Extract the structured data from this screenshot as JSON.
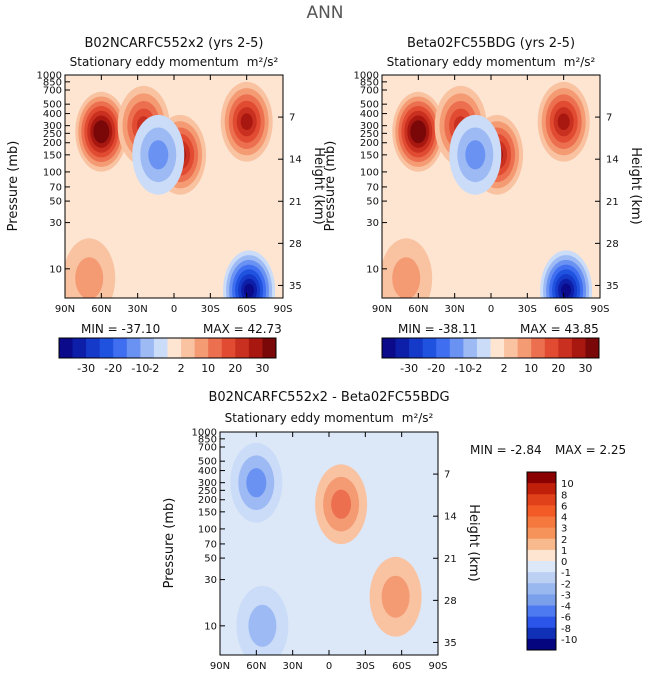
{
  "figure_title": "ANN",
  "chart_data": [
    {
      "type": "heatmap",
      "title": "B02NCARFC552x2 (yrs 2-5)",
      "subtitle": "Stationary eddy momentum",
      "units": "m²/s²",
      "xlabel": "",
      "ylabel": "Pressure (mb)",
      "ylabel_right": "Height (km)",
      "x_tick_labels": [
        "90N",
        "60N",
        "30N",
        "0",
        "30S",
        "60S",
        "90S"
      ],
      "y_tick_labels": [
        "10",
        "30",
        "50",
        "70",
        "100",
        "150",
        "200",
        "250",
        "300",
        "400",
        "500",
        "700",
        "850",
        "1000"
      ],
      "y_right_tick_labels": [
        "35",
        "28",
        "21",
        "14",
        "7"
      ],
      "xlim": [
        90,
        -90
      ],
      "ylim_pressure": [
        1000,
        5
      ],
      "contour_levels": [
        -30,
        -25,
        -20,
        -15,
        -10,
        -5,
        -2,
        0,
        2,
        5,
        10,
        15,
        20,
        25,
        30
      ],
      "min_label": "MIN = -37.10",
      "max_label": "MAX = 42.73",
      "features": [
        {
          "lat": 60,
          "p": 260,
          "value": 42.7
        },
        {
          "lat": -60,
          "p": 330,
          "value": 24
        },
        {
          "lat": 25,
          "p": 300,
          "value": 16
        },
        {
          "lat": -5,
          "p": 150,
          "value": 22
        },
        {
          "lat": -62,
          "p": 6,
          "value": -37.1
        },
        {
          "lat": 13,
          "p": 150,
          "value": -8
        },
        {
          "lat": 70,
          "p": 8,
          "value": 3
        }
      ]
    },
    {
      "type": "heatmap",
      "title": "Beta02FC55BDG (yrs 2-5)",
      "subtitle": "Stationary eddy momentum",
      "units": "m²/s²",
      "xlabel": "",
      "ylabel": "Pressure (mb)",
      "ylabel_right": "Height (km)",
      "x_tick_labels": [
        "90N",
        "60N",
        "30N",
        "0",
        "30S",
        "60S",
        "90S"
      ],
      "y_tick_labels": [
        "10",
        "30",
        "50",
        "70",
        "100",
        "150",
        "200",
        "250",
        "300",
        "400",
        "500",
        "700",
        "850",
        "1000"
      ],
      "y_right_tick_labels": [
        "35",
        "28",
        "21",
        "14",
        "7"
      ],
      "xlim": [
        90,
        -90
      ],
      "ylim_pressure": [
        1000,
        5
      ],
      "contour_levels": [
        -30,
        -25,
        -20,
        -15,
        -10,
        -5,
        -2,
        0,
        2,
        5,
        10,
        15,
        20,
        25,
        30
      ],
      "min_label": "MIN = -38.11",
      "max_label": "MAX = 43.85",
      "features": [
        {
          "lat": 60,
          "p": 260,
          "value": 43.85
        },
        {
          "lat": -60,
          "p": 330,
          "value": 24
        },
        {
          "lat": 25,
          "p": 300,
          "value": 16
        },
        {
          "lat": -5,
          "p": 150,
          "value": 22
        },
        {
          "lat": -62,
          "p": 6,
          "value": -38.11
        },
        {
          "lat": 13,
          "p": 150,
          "value": -8
        },
        {
          "lat": 70,
          "p": 8,
          "value": 4
        }
      ]
    },
    {
      "type": "heatmap",
      "title": "B02NCARFC552x2 - Beta02FC55BDG",
      "subtitle": "Stationary eddy momentum",
      "units": "m²/s²",
      "xlabel": "",
      "ylabel": "Pressure (mb)",
      "ylabel_right": "Height (km)",
      "x_tick_labels": [
        "90N",
        "60N",
        "30N",
        "0",
        "30S",
        "60S",
        "90S"
      ],
      "y_tick_labels": [
        "10",
        "30",
        "50",
        "70",
        "100",
        "150",
        "200",
        "250",
        "300",
        "400",
        "500",
        "700",
        "850",
        "1000"
      ],
      "y_right_tick_labels": [
        "35",
        "28",
        "21",
        "14",
        "7"
      ],
      "xlim": [
        90,
        -90
      ],
      "ylim_pressure": [
        1000,
        5
      ],
      "contour_levels": [
        -10,
        -8,
        -6,
        -4,
        -3,
        -2,
        -1,
        0,
        1,
        2,
        3,
        4,
        6,
        8,
        10
      ],
      "min_label": "MIN =   -2.84",
      "max_label": "MAX =    2.25",
      "features": [
        {
          "lat": 60,
          "p": 300,
          "value": -2.84
        },
        {
          "lat": -55,
          "p": 20,
          "value": 1.5
        },
        {
          "lat": -10,
          "p": 180,
          "value": 2.25
        },
        {
          "lat": 55,
          "p": 10,
          "value": -1.5
        }
      ]
    }
  ],
  "colorbar_horizontal": {
    "tick_labels": [
      "-30",
      "-20",
      "-10",
      "-2",
      "2",
      "10",
      "20",
      "30"
    ],
    "colors": [
      "#0a0a8a",
      "#0d1fa8",
      "#1539c8",
      "#2052e0",
      "#3f6ff0",
      "#6a92f2",
      "#9dbaf4",
      "#cadcf8",
      "#fde5d2",
      "#f9c3a2",
      "#f49b74",
      "#ec7050",
      "#e04b32",
      "#c9301f",
      "#a81810",
      "#7a0808"
    ]
  },
  "colorbar_vertical": {
    "tick_labels": [
      "10",
      "8",
      "6",
      "4",
      "3",
      "2",
      "1",
      "0",
      "-1",
      "-2",
      "-3",
      "-4",
      "-6",
      "-8",
      "-10"
    ],
    "colors": [
      "#8a0000",
      "#c0200a",
      "#e0401a",
      "#f25a26",
      "#f5783e",
      "#f5935a",
      "#f8b98c",
      "#fde5d2",
      "#dce8f8",
      "#bcd0f4",
      "#9ab8f0",
      "#7aa0ec",
      "#4d7af0",
      "#2a55e8",
      "#1030b8",
      "#050580"
    ]
  }
}
